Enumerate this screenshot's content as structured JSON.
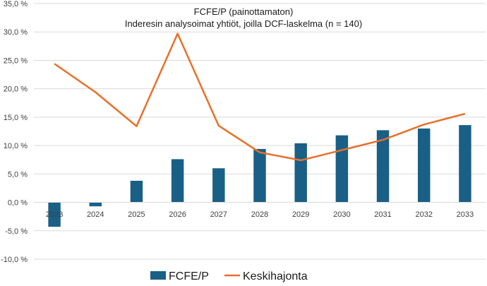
{
  "chart_data": {
    "type": "bar+line",
    "title": "FCFE/P (painottamaton)",
    "subtitle": "Inderesin analysoimat yhtiöt, joilla DCF-laskelma (n = 140)",
    "categories": [
      "2023",
      "2024",
      "2025",
      "2026",
      "2027",
      "2028",
      "2029",
      "2030",
      "2031",
      "2032",
      "2033"
    ],
    "series": [
      {
        "name": "FCFE/P",
        "kind": "bar",
        "color": "#1a5f85",
        "values": [
          -4.3,
          -0.7,
          3.8,
          7.6,
          6.0,
          9.4,
          10.4,
          11.8,
          12.7,
          13.0,
          13.6
        ]
      },
      {
        "name": "Keskihajonta",
        "kind": "line",
        "color": "#e8702a",
        "values": [
          24.4,
          19.4,
          13.4,
          29.7,
          13.5,
          8.8,
          7.4,
          9.2,
          11.0,
          13.7,
          15.6
        ]
      }
    ],
    "ylim": [
      -10,
      35
    ],
    "yticks": [
      -10,
      -5,
      0,
      5,
      10,
      15,
      20,
      25,
      30,
      35
    ],
    "ytick_labels": [
      "-10,0 %",
      "-5,0 %",
      "0,0 %",
      "5,0 %",
      "10,0 %",
      "15,0 %",
      "20,0 %",
      "25,0 %",
      "30,0 %",
      "35,0 %"
    ],
    "grid": true,
    "legend_position": "bottom-center"
  }
}
